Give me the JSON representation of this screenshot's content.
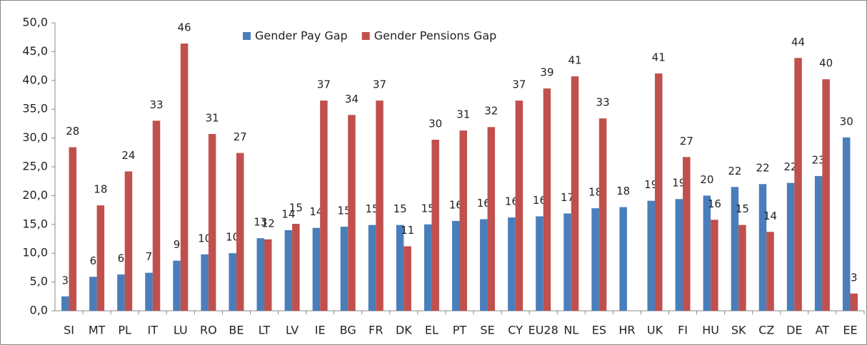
{
  "chart_data": {
    "type": "bar",
    "categories": [
      "SI",
      "MT",
      "PL",
      "IT",
      "LU",
      "RO",
      "BE",
      "LT",
      "LV",
      "IE",
      "BG",
      "FR",
      "DK",
      "EL",
      "PT",
      "SE",
      "CY",
      "EU28",
      "NL",
      "ES",
      "HR",
      "UK",
      "FI",
      "HU",
      "SK",
      "CZ",
      "DE",
      "AT",
      "EE"
    ],
    "series": [
      {
        "name": "Gender Pay Gap",
        "color": "#4a7ebb",
        "values": [
          2.5,
          5.9,
          6.3,
          6.6,
          8.7,
          9.8,
          10.0,
          12.6,
          14.0,
          14.4,
          14.6,
          14.9,
          14.9,
          15.0,
          15.6,
          15.9,
          16.2,
          16.4,
          16.9,
          17.8,
          18.0,
          19.1,
          19.4,
          20.0,
          21.5,
          22.0,
          22.2,
          23.4,
          30.1
        ],
        "value_labels": [
          "3",
          "6",
          "6",
          "7",
          "9",
          "10",
          "10",
          "13",
          "14",
          "14",
          "15",
          "15",
          "15",
          "15",
          "16",
          "16",
          "16",
          "16",
          "17",
          "18",
          "18",
          "19",
          "19",
          "20",
          "22",
          "22",
          "22",
          "23",
          "30"
        ]
      },
      {
        "name": "Gender Pensions Gap",
        "color": "#c0504d",
        "values": [
          28.4,
          18.3,
          24.2,
          33.0,
          46.4,
          30.7,
          27.4,
          12.4,
          15.1,
          36.5,
          34.0,
          36.5,
          11.2,
          29.7,
          31.3,
          31.9,
          36.5,
          38.6,
          40.7,
          33.4,
          null,
          41.2,
          26.7,
          15.8,
          14.9,
          13.7,
          43.9,
          40.2,
          3.0
        ],
        "value_labels": [
          "28",
          "18",
          "24",
          "33",
          "46",
          "31",
          "27",
          "12",
          "15",
          "37",
          "34",
          "37",
          "11",
          "30",
          "31",
          "32",
          "37",
          "39",
          "41",
          "33",
          null,
          "41",
          "27",
          "16",
          "15",
          "14",
          "44",
          "40",
          "3"
        ]
      }
    ],
    "ylim": [
      0,
      50
    ],
    "yticks": [
      {
        "value": 0,
        "label": "0,0"
      },
      {
        "value": 5,
        "label": "5,0"
      },
      {
        "value": 10,
        "label": "10,0"
      },
      {
        "value": 15,
        "label": "15,0"
      },
      {
        "value": 20,
        "label": "20,0"
      },
      {
        "value": 25,
        "label": "25,0"
      },
      {
        "value": 30,
        "label": "30,0"
      },
      {
        "value": 35,
        "label": "35,0"
      },
      {
        "value": 40,
        "label": "40,0"
      },
      {
        "value": 45,
        "label": "45,0"
      },
      {
        "value": 50,
        "label": "50,0"
      }
    ],
    "grid": false,
    "legend": "top"
  }
}
